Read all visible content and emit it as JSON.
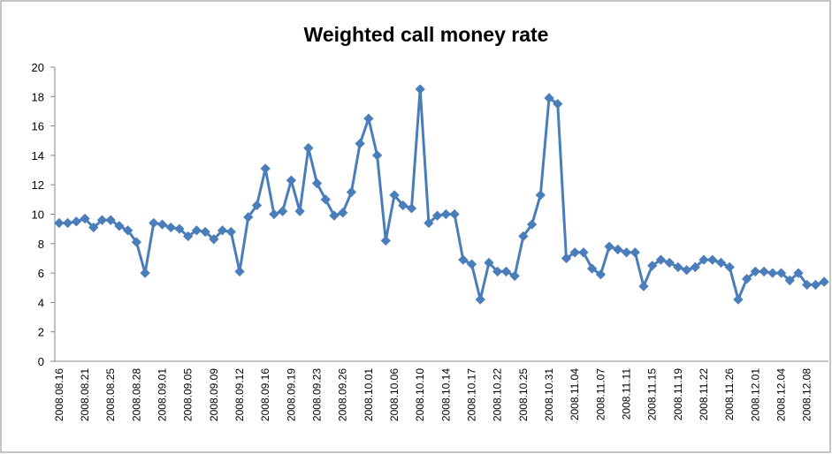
{
  "chart_data": {
    "type": "line",
    "title": "Weighted call money rate",
    "categories": [
      "2008.08.16",
      null,
      null,
      "2008.08.21",
      null,
      null,
      "2008.08.25",
      null,
      null,
      "2008.08.28",
      null,
      null,
      "2008.09.01",
      null,
      null,
      "2008.09.05",
      null,
      null,
      "2008.09.09",
      null,
      null,
      "2008.09.12",
      null,
      null,
      "2008.09.16",
      null,
      null,
      "2008.09.19",
      null,
      null,
      "2008.09.23",
      null,
      null,
      "2008.09.26",
      null,
      null,
      "2008.10.01",
      null,
      null,
      "2008.10.06",
      null,
      null,
      "2008.10.10",
      null,
      null,
      "2008.10.14",
      null,
      null,
      "2008.10.17",
      null,
      null,
      "2008.10.22",
      null,
      null,
      "2008.10.25",
      null,
      null,
      "2008.10.31",
      null,
      null,
      "2008.11.04",
      null,
      null,
      "2008.11.07",
      null,
      null,
      "2008.11.11",
      null,
      null,
      "2008.11.15",
      null,
      null,
      "2008.11.19",
      null,
      null,
      "2008.11.22",
      null,
      null,
      "2008.11.26",
      null,
      null,
      "2008.12.01",
      null,
      null,
      "2008.12.04",
      null,
      null,
      "2008.12.08",
      null,
      null
    ],
    "series": [
      {
        "name": "Weighted call money rate",
        "color": "#4a7ebb",
        "values": [
          9.4,
          9.4,
          9.5,
          9.7,
          9.1,
          9.6,
          9.6,
          9.2,
          8.9,
          8.1,
          6.0,
          9.4,
          9.3,
          9.1,
          9.0,
          8.5,
          8.9,
          8.8,
          8.3,
          8.9,
          8.8,
          6.1,
          9.8,
          10.6,
          13.1,
          10.0,
          10.2,
          12.3,
          10.2,
          14.5,
          12.1,
          11.0,
          9.9,
          10.1,
          11.5,
          14.8,
          16.5,
          14.0,
          8.2,
          11.3,
          10.6,
          10.4,
          18.5,
          9.4,
          9.9,
          10.0,
          10.0,
          6.9,
          6.6,
          4.2,
          6.7,
          6.1,
          6.1,
          5.8,
          8.5,
          9.3,
          11.3,
          17.9,
          17.5,
          7.0,
          7.4,
          7.4,
          6.3,
          5.9,
          7.8,
          7.6,
          7.4,
          7.4,
          5.1,
          6.5,
          6.9,
          6.7,
          6.4,
          6.2,
          6.4,
          6.9,
          6.9,
          6.7,
          6.4,
          4.2,
          5.6,
          6.1,
          6.1,
          6.0,
          6.0,
          5.5,
          6.0,
          5.2,
          5.2,
          5.4
        ]
      }
    ],
    "ylim": [
      0,
      20
    ],
    "yticks": [
      0,
      2,
      4,
      6,
      8,
      10,
      12,
      14,
      16,
      18,
      20
    ],
    "grid": false
  }
}
